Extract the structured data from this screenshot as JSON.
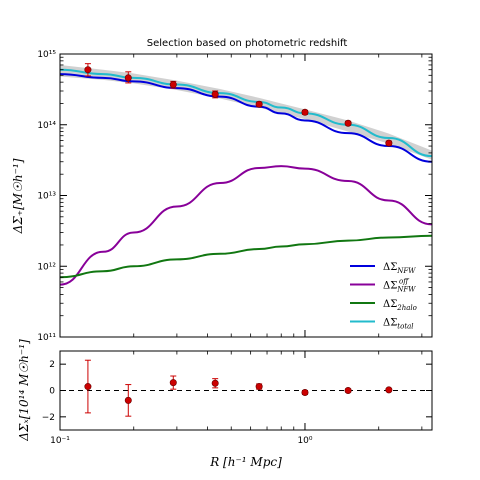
{
  "chart_data": [
    {
      "type": "line",
      "title": "Selection based on photometric redshift",
      "xscale": "log",
      "yscale": "log",
      "xlim": [
        0.1,
        3.3
      ],
      "ylim": [
        100000000000.0,
        1000000000000000.0
      ],
      "xlabel": "",
      "ylabel": "ΔΣ₊[M☉h⁻¹]",
      "x_ticks": [
        0.1,
        1
      ],
      "x_tick_labels": [
        "",
        ""
      ],
      "y_ticks": [
        100000000000.0,
        1000000000000.0,
        10000000000000.0,
        100000000000000.0,
        1000000000000000.0
      ],
      "y_tick_labels": [
        "10¹¹",
        "10¹²",
        "10¹³",
        "10¹⁴",
        "10¹⁵"
      ],
      "legend_position": "lower-right",
      "x": [
        0.1,
        0.15,
        0.2,
        0.3,
        0.45,
        0.65,
        0.8,
        1.0,
        1.5,
        2.2,
        3.3
      ],
      "series": [
        {
          "name": "ΔΣNFW",
          "color": "#0000dd",
          "values": [
            520000000000000.0,
            460000000000000.0,
            410000000000000.0,
            330000000000000.0,
            250000000000000.0,
            180000000000000.0,
            145000000000000.0,
            115000000000000.0,
            76000000000000.0,
            50000000000000.0,
            30000000000000.0
          ]
        },
        {
          "name": "ΔΣNFW off",
          "color": "#880099",
          "values": [
            550000000000.0,
            1600000000000.0,
            3000000000000.0,
            7000000000000.0,
            15000000000000.0,
            24500000000000.0,
            26000000000000.0,
            24000000000000.0,
            16000000000000.0,
            8500000000000.0,
            3900000000000.0
          ]
        },
        {
          "name": "ΔΣ2halo",
          "color": "#117711",
          "values": [
            700000000000.0,
            850000000000.0,
            1000000000000.0,
            1250000000000.0,
            1500000000000.0,
            1750000000000.0,
            1900000000000.0,
            2050000000000.0,
            2300000000000.0,
            2550000000000.0,
            2700000000000.0
          ]
        },
        {
          "name": "ΔΣtotal",
          "color": "#22bbcc",
          "values": [
            600000000000000.0,
            520000000000000.0,
            460000000000000.0,
            370000000000000.0,
            280000000000000.0,
            210000000000000.0,
            175000000000000.0,
            145000000000000.0,
            100000000000000.0,
            65000000000000.0,
            36000000000000.0
          ]
        }
      ],
      "data_points": {
        "x": [
          0.13,
          0.19,
          0.29,
          0.43,
          0.65,
          1.0,
          1.5,
          2.2
        ],
        "y": [
          600000000000000.0,
          460000000000000.0,
          370000000000000.0,
          270000000000000.0,
          195000000000000.0,
          150000000000000.0,
          105000000000000.0,
          55000000000000.0
        ],
        "yerr_low": [
          490000000000000.0,
          390000000000000.0,
          330000000000000.0,
          240000000000000.0,
          180000000000000.0,
          140000000000000.0,
          99000000000000.0,
          51000000000000.0
        ],
        "yerr_high": [
          730000000000000.0,
          560000000000000.0,
          410000000000000.0,
          300000000000000.0,
          210000000000000.0,
          160000000000000.0,
          112000000000000.0,
          59000000000000.0
        ],
        "marker_color": "#cc0000"
      },
      "grey_band": {
        "color": "#999999",
        "lower": [
          480000000000000.0,
          430000000000000.0,
          385000000000000.0,
          310000000000000.0,
          235000000000000.0,
          175000000000000.0,
          145000000000000.0,
          120000000000000.0,
          80000000000000.0,
          54000000000000.0,
          32000000000000.0
        ],
        "upper": [
          700000000000000.0,
          600000000000000.0,
          530000000000000.0,
          420000000000000.0,
          320000000000000.0,
          240000000000000.0,
          200000000000000.0,
          165000000000000.0,
          115000000000000.0,
          75000000000000.0,
          43000000000000.0
        ]
      }
    },
    {
      "type": "scatter",
      "xscale": "log",
      "xlim": [
        0.1,
        3.3
      ],
      "ylim": [
        -3,
        3
      ],
      "xlabel": "R [h⁻¹ Mpc]",
      "ylabel": "ΔΣₓ[10¹⁴ M☉h⁻¹]",
      "x_ticks": [
        0.1,
        1
      ],
      "x_tick_labels": [
        "10⁻¹",
        "10⁰"
      ],
      "y_ticks": [
        -2,
        0,
        2
      ],
      "y_tick_labels": [
        "−2",
        "0",
        "2"
      ],
      "reference_line": 0,
      "x": [
        0.13,
        0.19,
        0.29,
        0.43,
        0.65,
        1.0,
        1.5,
        2.2
      ],
      "y": [
        0.3,
        -0.75,
        0.6,
        0.55,
        0.3,
        -0.15,
        0.0,
        0.05
      ],
      "yerr": [
        2.0,
        1.2,
        0.5,
        0.35,
        0.2,
        0.15,
        0.12,
        0.1
      ]
    }
  ]
}
